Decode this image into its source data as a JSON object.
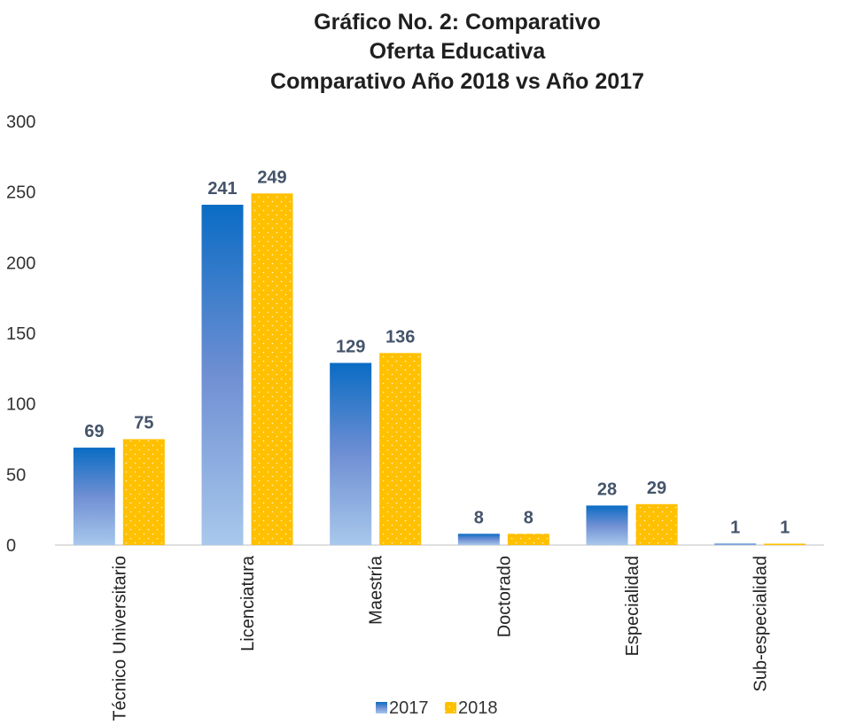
{
  "chart_data": {
    "type": "bar",
    "title": [
      "Gráfico No. 2: Comparativo",
      "Oferta Educativa",
      "Comparativo Año 2018 vs Año 2017"
    ],
    "categories": [
      "Técnico Universitario",
      "Licenciatura",
      "Maestría",
      "Doctorado",
      "Especialidad",
      "Sub-especialidad"
    ],
    "series": [
      {
        "name": "2017",
        "values": [
          69,
          241,
          129,
          8,
          28,
          1
        ],
        "color_top": "#0a6cc4",
        "color_mid": "#6f8fd3",
        "color_bottom": "#a8c8ec"
      },
      {
        "name": "2018",
        "values": [
          75,
          249,
          136,
          8,
          29,
          1
        ],
        "color": "#ffc000",
        "pattern": "dotted"
      }
    ],
    "ylim": [
      0,
      300
    ],
    "yticks": [
      0,
      50,
      100,
      150,
      200,
      250,
      300
    ],
    "xlabel": "",
    "ylabel": "",
    "grid": false,
    "legend_position": "bottom",
    "data_labels": true
  }
}
